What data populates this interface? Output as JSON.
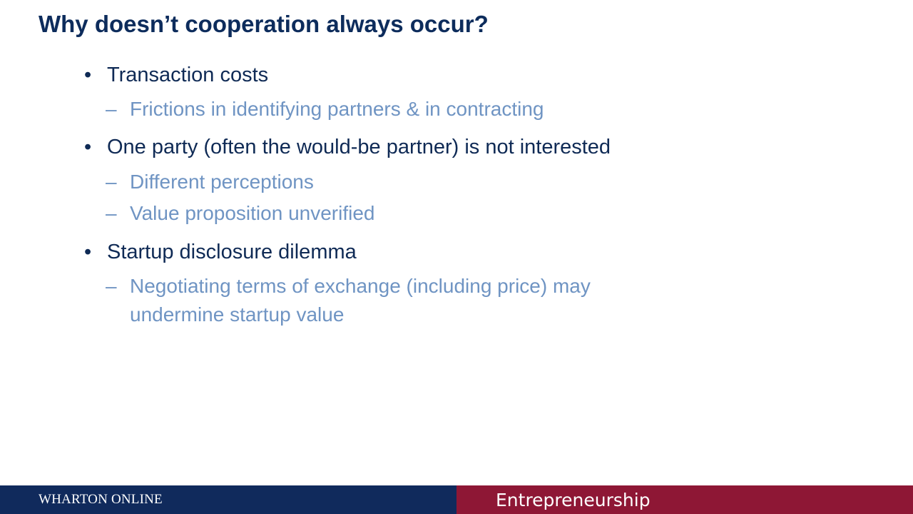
{
  "slide": {
    "title": "Why doesn’t cooperation always occur?",
    "bullets": [
      {
        "text": "Transaction costs",
        "subs": [
          "Frictions in identifying partners & in contracting"
        ]
      },
      {
        "text": "One party (often the would-be partner) is not interested",
        "subs": [
          "Different perceptions",
          "Value proposition unverified"
        ]
      },
      {
        "text": "Startup disclosure dilemma",
        "subs": [
          "Negotiating terms of exchange (including price) may",
          "undermine startup value"
        ]
      }
    ],
    "bullet_marker": "•",
    "sub_marker": "–"
  },
  "footer": {
    "brand": "WHARTON ONLINE",
    "course": "Entrepreneurship"
  },
  "colors": {
    "title": "#0d2c5c",
    "bullet_text": "#0f2a55",
    "sub_text": "#6f94c3",
    "footer_left_bg": "#102a5c",
    "footer_right_bg": "#8e1735"
  }
}
